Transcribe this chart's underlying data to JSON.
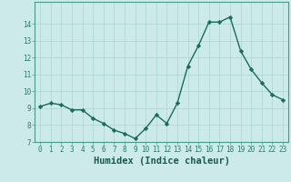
{
  "x": [
    0,
    1,
    2,
    3,
    4,
    5,
    6,
    7,
    8,
    9,
    10,
    11,
    12,
    13,
    14,
    15,
    16,
    17,
    18,
    19,
    20,
    21,
    22,
    23
  ],
  "y": [
    9.1,
    9.3,
    9.2,
    8.9,
    8.9,
    8.4,
    8.1,
    7.7,
    7.5,
    7.2,
    7.8,
    8.6,
    8.1,
    9.3,
    11.5,
    12.7,
    14.1,
    14.1,
    14.4,
    12.4,
    11.3,
    10.5,
    9.8,
    9.5
  ],
  "xlabel": "Humidex (Indice chaleur)",
  "line_color": "#1a6b5a",
  "marker": "D",
  "marker_size": 2.2,
  "bg_color": "#cdeaea",
  "grid_color": "#b0d8d8",
  "ylim": [
    7,
    15
  ],
  "xlim": [
    -0.5,
    23.5
  ],
  "yticks": [
    7,
    8,
    9,
    10,
    11,
    12,
    13,
    14
  ],
  "xticks": [
    0,
    1,
    2,
    3,
    4,
    5,
    6,
    7,
    8,
    9,
    10,
    11,
    12,
    13,
    14,
    15,
    16,
    17,
    18,
    19,
    20,
    21,
    22,
    23
  ],
  "xtick_labels": [
    "0",
    "1",
    "2",
    "3",
    "4",
    "5",
    "6",
    "7",
    "8",
    "9",
    "10",
    "11",
    "12",
    "13",
    "14",
    "15",
    "16",
    "17",
    "18",
    "19",
    "20",
    "21",
    "22",
    "23"
  ],
  "tick_fontsize": 5.5,
  "xlabel_fontsize": 7.5
}
